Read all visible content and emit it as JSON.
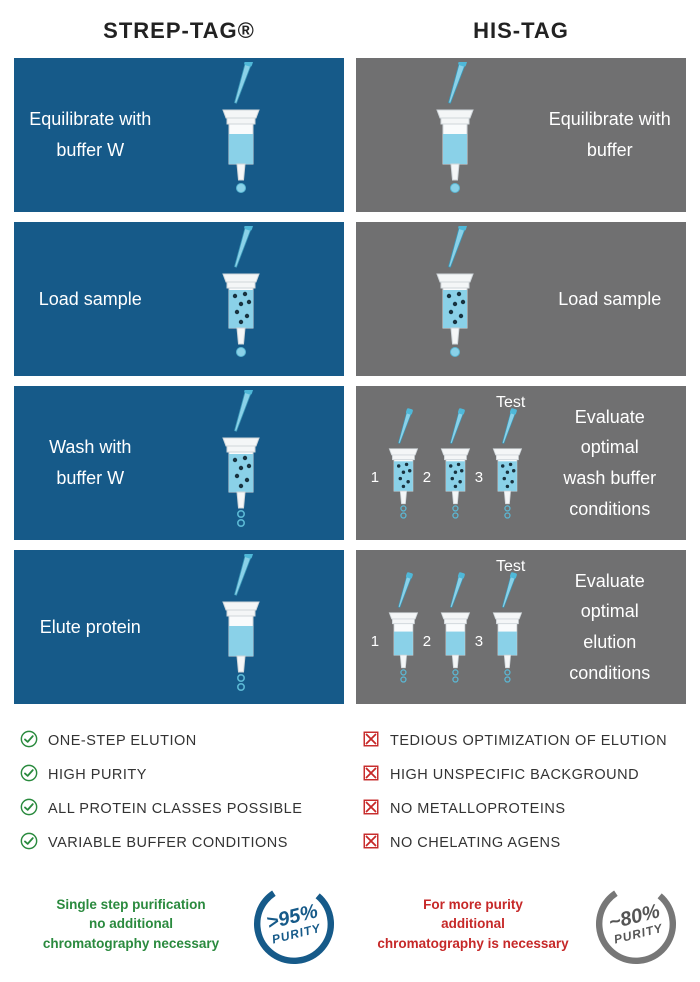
{
  "headers": {
    "left": "STREP-TAG®",
    "right": "HIS-TAG"
  },
  "rows": [
    {
      "left": "Equilibrate with\nbuffer W",
      "right": "Equilibrate with\nbuffer",
      "multiRight": false,
      "fill": "clear",
      "dots": false,
      "drip": "drop"
    },
    {
      "left": "Load sample",
      "right": "Load sample",
      "multiRight": false,
      "fill": "spotted",
      "dots": true,
      "drip": "drop"
    },
    {
      "left": "Wash with\nbuffer W",
      "right": "Evaluate optimal\nwash buffer\nconditions",
      "multiRight": true,
      "fill": "spotted",
      "dots": true,
      "drip": "dots",
      "testLabel": "Test"
    },
    {
      "left": "Elute protein",
      "right": "Evaluate optimal\nelution\nconditions",
      "multiRight": true,
      "fill": "clear",
      "dots": false,
      "drip": "dots",
      "testLabel": "Test"
    }
  ],
  "bulletsLeft": [
    "ONE-STEP ELUTION",
    "HIGH PURITY",
    "ALL PROTEIN CLASSES POSSIBLE",
    "VARIABLE BUFFER CONDITIONS"
  ],
  "bulletsRight": [
    "TEDIOUS OPTIMIZATION OF ELUTION",
    "HIGH UNSPECIFIC BACKGROUND",
    "NO METALLOPROTEINS",
    "NO CHELATING AGENS"
  ],
  "footer": {
    "leftText": "Single step purification\nno additional\nchromatography necessary",
    "rightText": "For more purity\nadditional\nchromatography is necessary",
    "leftBadge": {
      "big": ">95%",
      "small": "PURITY"
    },
    "rightBadge": {
      "big": "~80%",
      "small": "PURITY"
    }
  },
  "colors": {
    "blue": "#165a89",
    "grey": "#707071",
    "liquid": "#8ad1e8",
    "liquidDark": "#4fb8d8",
    "green": "#2a8a3e",
    "red": "#c62828",
    "badgeStroke": "#165a89",
    "badgeStrokeGrey": "#777777"
  }
}
